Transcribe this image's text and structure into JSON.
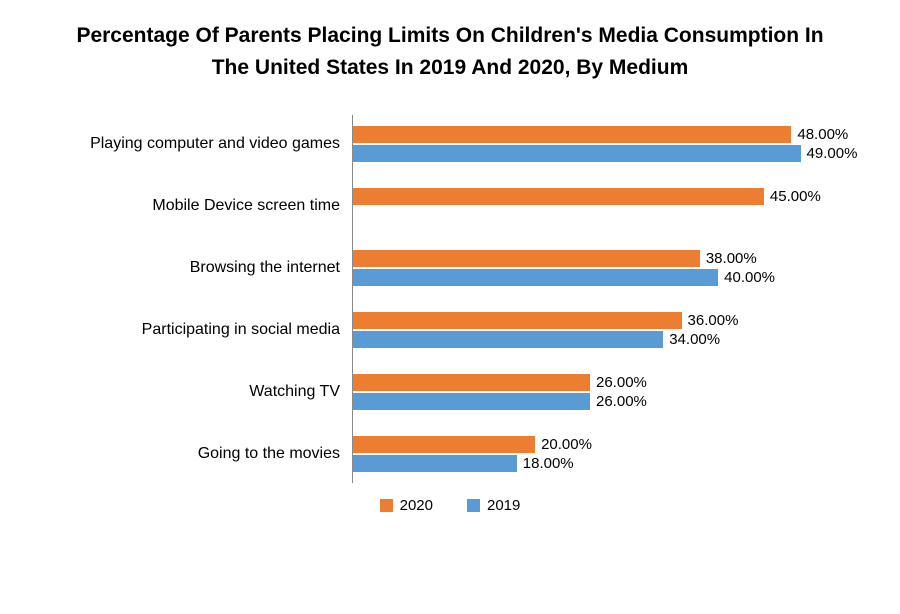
{
  "title": "Percentage Of Parents Placing Limits On Children's Media Consumption In The United States In 2019 And 2020, By Medium",
  "chart_data": {
    "type": "bar",
    "orientation": "horizontal",
    "title": "Percentage Of Parents Placing Limits On Children's Media Consumption In The United States In 2019 And 2020, By Medium",
    "categories": [
      "Playing computer and video games",
      "Mobile Device screen time",
      "Browsing the internet",
      "Participating in social media",
      "Watching TV",
      "Going to the movies"
    ],
    "series": [
      {
        "name": "2020",
        "color": "#ED7D31",
        "values": [
          48,
          45,
          38,
          36,
          26,
          20
        ],
        "labels": [
          "48.00%",
          "45.00%",
          "38.00%",
          "36.00%",
          "26.00%",
          "20.00%"
        ]
      },
      {
        "name": "2019",
        "color": "#5B9BD5",
        "values": [
          49,
          null,
          40,
          34,
          26,
          18
        ],
        "labels": [
          "49.00%",
          null,
          "40.00%",
          "34.00%",
          "26.00%",
          "18.00%"
        ]
      }
    ],
    "xlim": [
      0,
      52
    ],
    "grid": false,
    "legend_position": "bottom",
    "value_format": "0.00%"
  }
}
